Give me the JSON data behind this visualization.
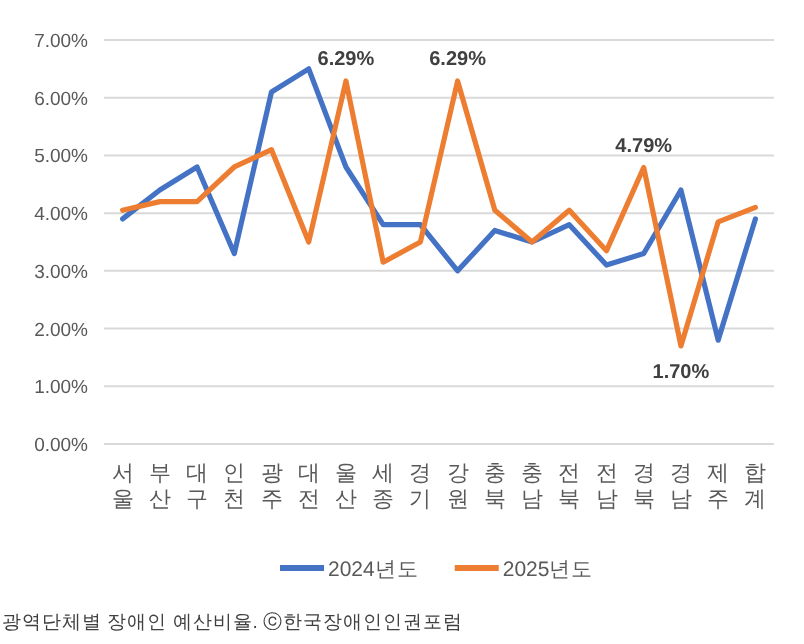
{
  "chart_data": {
    "type": "line",
    "categories": [
      "서울",
      "부산",
      "대구",
      "인천",
      "광주",
      "대전",
      "울산",
      "세종",
      "경기",
      "강원",
      "충북",
      "충남",
      "전북",
      "전남",
      "경북",
      "경남",
      "제주",
      "합계"
    ],
    "series": [
      {
        "name": "2024년도",
        "color": "#4472c4",
        "values": [
          3.9,
          4.4,
          4.8,
          3.3,
          6.1,
          6.5,
          4.8,
          3.8,
          3.8,
          3.0,
          3.7,
          3.5,
          3.8,
          3.1,
          3.3,
          4.4,
          1.8,
          3.9
        ]
      },
      {
        "name": "2025년도",
        "color": "#ed7d31",
        "values": [
          4.05,
          4.2,
          4.2,
          4.8,
          5.1,
          3.5,
          6.29,
          3.15,
          3.5,
          6.29,
          4.05,
          3.5,
          4.05,
          3.35,
          4.79,
          1.7,
          3.85,
          4.1
        ],
        "value_labels": [
          null,
          null,
          null,
          null,
          null,
          null,
          "6.29%",
          null,
          null,
          "6.29%",
          null,
          null,
          null,
          null,
          "4.79%",
          "1.70%",
          null,
          null
        ]
      }
    ],
    "ylim": [
      0,
      7
    ],
    "yticks": [
      {
        "value": 0,
        "label": "0.00%"
      },
      {
        "value": 1,
        "label": "1.00%"
      },
      {
        "value": 2,
        "label": "2.00%"
      },
      {
        "value": 3,
        "label": "3.00%"
      },
      {
        "value": 4,
        "label": "4.00%"
      },
      {
        "value": 5,
        "label": "5.00%"
      },
      {
        "value": 6,
        "label": "6.00%"
      },
      {
        "value": 7,
        "label": "7.00%"
      }
    ],
    "grid": "y",
    "legend": "bottom",
    "marker": "none",
    "line_style": "solid",
    "annotations": [
      "광역단체별 장애인 예산비율. ⓒ한국장애인인권포럼"
    ]
  }
}
